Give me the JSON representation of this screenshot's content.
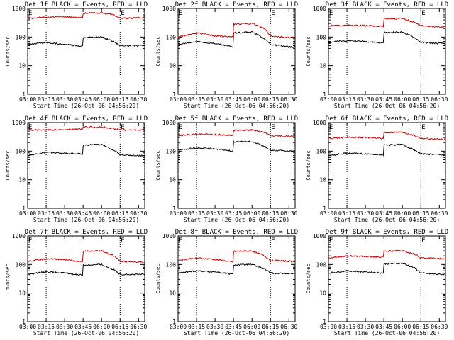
{
  "panel_title_template": "Det {det} BLACK = Events, RED = LLD",
  "colors": {
    "events": "#000000",
    "lld": "#cc0000",
    "axes": "#000000",
    "background": "#ffffff"
  },
  "chart_data": [
    {
      "type": "line",
      "det": "1f",
      "title": "Det 1f BLACK = Events, RED = LLD",
      "xlabel": "Start Time (26-Oct-06 04:56:20)",
      "ylabel": "Counts/sec",
      "yscale": "log",
      "ylim": [
        1,
        1000
      ],
      "xlim": [
        "03:00",
        "06:35"
      ],
      "x_ticks": [
        "03:00",
        "03:15",
        "03:30",
        "03:45",
        "06:00",
        "06:15",
        "06:30"
      ],
      "y_ticks": [
        "1",
        "10",
        "100",
        "1000"
      ],
      "markers": [
        "03:15",
        "06:15"
      ],
      "x": [
        "03:00",
        "03:15",
        "03:30",
        "03:45",
        "03:55",
        "06:00",
        "06:10",
        "06:15",
        "06:30"
      ],
      "series": [
        {
          "name": "Events",
          "values": [
            55,
            65,
            55,
            48,
            75,
            100,
            70,
            50,
            50
          ]
        },
        {
          "name": "LLD",
          "values": [
            450,
            500,
            500,
            500,
            600,
            700,
            600,
            450,
            470
          ]
        }
      ]
    },
    {
      "type": "line",
      "det": "2f",
      "title": "Det 2f BLACK = Events, RED = LLD",
      "xlabel": "Start Time (26-Oct-06 04:56:20)",
      "ylabel": "Counts/sec",
      "yscale": "log",
      "ylim": [
        1,
        1000
      ],
      "xlim": [
        "03:00",
        "06:35"
      ],
      "x_ticks": [
        "03:00",
        "03:15",
        "03:30",
        "03:45",
        "06:00",
        "06:15",
        "06:30"
      ],
      "y_ticks": [
        "1",
        "10",
        "100",
        "1000"
      ],
      "markers": [
        "03:15",
        "06:15"
      ],
      "x": [
        "03:00",
        "03:15",
        "03:30",
        "03:45",
        "03:55",
        "06:00",
        "06:10",
        "06:15",
        "06:30"
      ],
      "series": [
        {
          "name": "Events",
          "values": [
            55,
            70,
            60,
            45,
            90,
            150,
            90,
            55,
            45
          ]
        },
        {
          "name": "LLD",
          "values": [
            100,
            140,
            110,
            100,
            200,
            300,
            200,
            110,
            95
          ]
        }
      ]
    },
    {
      "type": "line",
      "det": "3f",
      "title": "Det 3f BLACK = Events, RED = LLD",
      "xlabel": "Start Time (26-Oct-06 04:56:20)",
      "ylabel": "Counts/sec",
      "yscale": "log",
      "ylim": [
        1,
        1000
      ],
      "xlim": [
        "03:00",
        "06:35"
      ],
      "x_ticks": [
        "03:00",
        "03:15",
        "03:30",
        "03:45",
        "06:00",
        "06:15",
        "06:30"
      ],
      "y_ticks": [
        "1",
        "10",
        "100",
        "1000"
      ],
      "markers": [
        "03:15",
        "06:15"
      ],
      "x": [
        "03:00",
        "03:15",
        "03:30",
        "03:45",
        "03:55",
        "06:00",
        "06:10",
        "06:15",
        "06:30"
      ],
      "series": [
        {
          "name": "Events",
          "values": [
            65,
            75,
            70,
            62,
            95,
            150,
            95,
            65,
            60
          ]
        },
        {
          "name": "LLD",
          "values": [
            250,
            260,
            250,
            240,
            330,
            450,
            330,
            250,
            230
          ]
        }
      ]
    },
    {
      "type": "line",
      "det": "4f",
      "title": "Det 4f BLACK = Events, RED = LLD",
      "xlabel": "Start Time (26-Oct-06 04:56:20)",
      "ylabel": "Counts/sec",
      "yscale": "log",
      "ylim": [
        1,
        1000
      ],
      "xlim": [
        "03:00",
        "06:35"
      ],
      "x_ticks": [
        "03:00",
        "03:15",
        "03:30",
        "03:45",
        "06:00",
        "06:15",
        "06:30"
      ],
      "y_ticks": [
        "1",
        "10",
        "100",
        "1000"
      ],
      "markers": [
        "03:15",
        "06:15"
      ],
      "x": [
        "03:00",
        "03:15",
        "03:30",
        "03:45",
        "03:55",
        "06:00",
        "06:10",
        "06:15",
        "06:30"
      ],
      "series": [
        {
          "name": "Events",
          "values": [
            70,
            90,
            85,
            80,
            110,
            170,
            110,
            75,
            70
          ]
        },
        {
          "name": "LLD",
          "values": [
            550,
            560,
            560,
            600,
            650,
            700,
            620,
            550,
            550
          ]
        }
      ]
    },
    {
      "type": "line",
      "det": "5f",
      "title": "Det 5f BLACK = Events, RED = LLD",
      "xlabel": "Start Time (26-Oct-06 04:56:20)",
      "ylabel": "Counts/sec",
      "yscale": "log",
      "ylim": [
        1,
        1000
      ],
      "xlim": [
        "03:00",
        "06:35"
      ],
      "x_ticks": [
        "03:00",
        "03:15",
        "03:30",
        "03:45",
        "06:00",
        "06:15",
        "06:30"
      ],
      "y_ticks": [
        "1",
        "10",
        "100",
        "1000"
      ],
      "markers": [
        "03:15",
        "06:15"
      ],
      "x": [
        "03:00",
        "03:15",
        "03:30",
        "03:45",
        "03:55",
        "06:00",
        "06:10",
        "06:15",
        "06:30"
      ],
      "series": [
        {
          "name": "Events",
          "values": [
            110,
            130,
            120,
            100,
            150,
            220,
            150,
            110,
            100
          ]
        },
        {
          "name": "LLD",
          "values": [
            350,
            400,
            380,
            360,
            450,
            550,
            450,
            350,
            330
          ]
        }
      ]
    },
    {
      "type": "line",
      "det": "6f",
      "title": "Det 6f BLACK = Events, RED = LLD",
      "xlabel": "Start Time (26-Oct-06 04:56:20)",
      "ylabel": "Counts/sec",
      "yscale": "log",
      "ylim": [
        1,
        1000
      ],
      "xlim": [
        "03:00",
        "06:35"
      ],
      "x_ticks": [
        "03:00",
        "03:15",
        "03:30",
        "03:45",
        "06:00",
        "06:15",
        "06:30"
      ],
      "y_ticks": [
        "1",
        "10",
        "100",
        "1000"
      ],
      "markers": [
        "03:15",
        "06:15"
      ],
      "x": [
        "03:00",
        "03:15",
        "03:30",
        "03:45",
        "03:55",
        "06:00",
        "06:10",
        "06:15",
        "06:30"
      ],
      "series": [
        {
          "name": "Events",
          "values": [
            70,
            85,
            80,
            75,
            110,
            170,
            110,
            80,
            75
          ]
        },
        {
          "name": "LLD",
          "values": [
            280,
            310,
            300,
            280,
            350,
            460,
            350,
            280,
            260
          ]
        }
      ]
    },
    {
      "type": "line",
      "det": "7f",
      "title": "Det 7f BLACK = Events, RED = LLD",
      "xlabel": "Start Time (26-Oct-06 04:56:20)",
      "ylabel": "Counts/sec",
      "yscale": "log",
      "ylim": [
        1,
        1000
      ],
      "xlim": [
        "03:00",
        "06:35"
      ],
      "x_ticks": [
        "03:00",
        "03:15",
        "03:30",
        "03:45",
        "06:00",
        "06:15",
        "06:30"
      ],
      "y_ticks": [
        "1",
        "10",
        "100",
        "1000"
      ],
      "markers": [
        "03:15",
        "06:15"
      ],
      "x": [
        "03:00",
        "03:15",
        "03:30",
        "03:45",
        "03:55",
        "06:00",
        "06:10",
        "06:15",
        "06:30"
      ],
      "series": [
        {
          "name": "Events",
          "values": [
            45,
            55,
            50,
            42,
            65,
            100,
            65,
            45,
            45
          ]
        },
        {
          "name": "LLD",
          "values": [
            130,
            160,
            150,
            120,
            200,
            300,
            200,
            130,
            120
          ]
        }
      ]
    },
    {
      "type": "line",
      "det": "8f",
      "title": "Det 8f BLACK = Events, RED = LLD",
      "xlabel": "Start Time (26-Oct-06 04:56:20)",
      "ylabel": "Counts/sec",
      "yscale": "log",
      "ylim": [
        1,
        1000
      ],
      "xlim": [
        "03:00",
        "06:35"
      ],
      "x_ticks": [
        "03:00",
        "03:15",
        "03:30",
        "03:45",
        "06:00",
        "06:15",
        "06:30"
      ],
      "y_ticks": [
        "1",
        "10",
        "100",
        "1000"
      ],
      "markers": [
        "03:15",
        "06:15"
      ],
      "x": [
        "03:00",
        "03:15",
        "03:30",
        "03:45",
        "03:55",
        "06:00",
        "06:10",
        "06:15",
        "06:30"
      ],
      "series": [
        {
          "name": "Events",
          "values": [
            50,
            60,
            55,
            45,
            70,
            100,
            70,
            50,
            48
          ]
        },
        {
          "name": "LLD",
          "values": [
            140,
            170,
            150,
            120,
            200,
            300,
            200,
            140,
            130
          ]
        }
      ]
    },
    {
      "type": "line",
      "det": "9f",
      "title": "Det 9f BLACK = Events, RED = LLD",
      "xlabel": "Start Time (26-Oct-06 04:56:20)",
      "ylabel": "Counts/sec",
      "yscale": "log",
      "ylim": [
        1,
        1000
      ],
      "xlim": [
        "03:00",
        "06:35"
      ],
      "x_ticks": [
        "03:00",
        "03:15",
        "03:30",
        "03:45",
        "06:00",
        "06:15",
        "06:30"
      ],
      "y_ticks": [
        "1",
        "10",
        "100",
        "1000"
      ],
      "markers": [
        "03:15",
        "06:15"
      ],
      "x": [
        "03:00",
        "03:15",
        "03:30",
        "03:45",
        "03:55",
        "06:00",
        "06:10",
        "06:15",
        "06:30"
      ],
      "series": [
        {
          "name": "Events",
          "values": [
            50,
            60,
            55,
            50,
            75,
            110,
            75,
            50,
            45
          ]
        },
        {
          "name": "LLD",
          "values": [
            170,
            200,
            190,
            180,
            230,
            300,
            230,
            170,
            160
          ]
        }
      ]
    }
  ]
}
